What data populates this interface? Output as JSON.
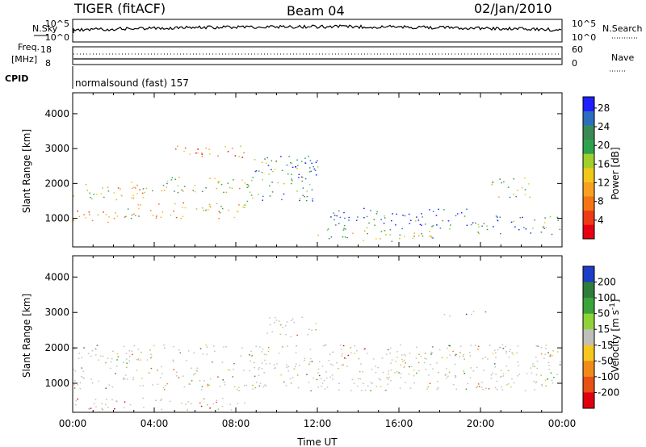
{
  "header": {
    "title": "TIGER (fitACF)",
    "beam": "Beam 04",
    "date": "02/Jan/2010"
  },
  "top_panels": {
    "nsky_label": "N.Sky",
    "nsearch_label": "N.Search",
    "noise_ticks_left": [
      "10^5",
      "10^0"
    ],
    "noise_ticks_right": [
      "10^5",
      "10^0"
    ],
    "freq_label": "Freq.",
    "freq_unit": "[MHz]",
    "freq_ticks": [
      "18",
      "8"
    ],
    "nave_label": "Nave",
    "nave_ticks": [
      "60",
      "0"
    ],
    "cpid_label": "CPID",
    "cpid_text": "normalsound (fast) 157"
  },
  "chart_data": [
    {
      "type": "heatmap",
      "title": "",
      "xlabel": "",
      "ylabel": "Slant Range [km]",
      "xlim": [
        "00:00",
        "24:00"
      ],
      "ylim": [
        180,
        4600
      ],
      "yticks": [
        "1000",
        "2000",
        "3000",
        "4000"
      ],
      "colorbar": {
        "label": "Power [dB]",
        "ticks": [
          "4",
          "8",
          "12",
          "16",
          "20",
          "24",
          "28"
        ],
        "colors": [
          "#1e1eff",
          "#2c6ebd",
          "#3b8a55",
          "#2fa34c",
          "#9fcf2c",
          "#f0c818",
          "#f9a020",
          "#f57515",
          "#ee3a16",
          "#e60012"
        ]
      },
      "regions": [
        {
          "t": [
            0.0,
            3.6
          ],
          "range": [
            1500,
            2050
          ],
          "level": 0.45
        },
        {
          "t": [
            0.0,
            2.5
          ],
          "range": [
            850,
            1250
          ],
          "level": 0.3
        },
        {
          "t": [
            3.2,
            8.8
          ],
          "range": [
            1750,
            2200
          ],
          "level": 0.55
        },
        {
          "t": [
            2.5,
            8.5
          ],
          "range": [
            1000,
            1500
          ],
          "level": 0.42
        },
        {
          "t": [
            5.0,
            8.5
          ],
          "range": [
            2700,
            3100
          ],
          "level": 0.3
        },
        {
          "t": [
            8.5,
            12.0
          ],
          "range": [
            1500,
            2800
          ],
          "level": 0.7
        },
        {
          "t": [
            10.5,
            12.0
          ],
          "range": [
            2350,
            2850
          ],
          "level": 0.95
        },
        {
          "t": [
            12.5,
            19.5
          ],
          "range": [
            700,
            1300
          ],
          "level": 0.85
        },
        {
          "t": [
            12.0,
            18.0
          ],
          "range": [
            350,
            700
          ],
          "level": 0.6
        },
        {
          "t": [
            19.5,
            24.0
          ],
          "range": [
            550,
            1100
          ],
          "level": 0.75
        },
        {
          "t": [
            20.5,
            22.5
          ],
          "range": [
            1600,
            2200
          ],
          "level": 0.6
        }
      ]
    },
    {
      "type": "heatmap",
      "title": "",
      "xlabel": "Time UT",
      "ylabel": "Slant Range [km]",
      "xlim": [
        "00:00",
        "24:00"
      ],
      "ylim": [
        180,
        4600
      ],
      "xticks": [
        "00:00",
        "04:00",
        "08:00",
        "12:00",
        "16:00",
        "20:00",
        "00:00"
      ],
      "yticks": [
        "1000",
        "2000",
        "3000",
        "4000"
      ],
      "colorbar": {
        "label": "Velocity [m s^-1]",
        "ticks": [
          "200",
          "100",
          "50",
          "15",
          "-15",
          "-50",
          "-100",
          "-200"
        ],
        "colors": [
          "#1e3cc8",
          "#2e7d3a",
          "#3aa33a",
          "#8fd23a",
          "#c0c0b8",
          "#f5c820",
          "#f08a18",
          "#e85014",
          "#e00010"
        ]
      },
      "regions": [
        {
          "t": [
            0.0,
            24.0
          ],
          "range": [
            800,
            2100
          ],
          "level": 0.5
        },
        {
          "t": [
            0.0,
            8.5
          ],
          "range": [
            250,
            600
          ],
          "level": 0.7
        },
        {
          "t": [
            9.5,
            12.0
          ],
          "range": [
            2300,
            2900
          ],
          "level": 0.85
        },
        {
          "t": [
            13.0,
            14.5
          ],
          "range": [
            1700,
            2100
          ],
          "level": 0.95
        },
        {
          "t": [
            18.0,
            20.5
          ],
          "range": [
            2900,
            3050
          ],
          "level": 0.15
        }
      ]
    }
  ]
}
